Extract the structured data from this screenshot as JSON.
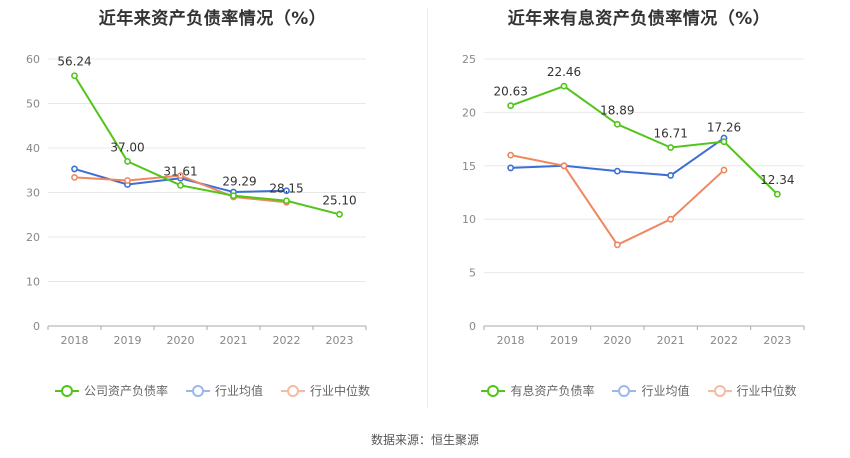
{
  "footer": {
    "source": "数据来源：恒生聚源"
  },
  "chart_data": [
    {
      "type": "line",
      "title": "近年来资产负债率情况（%）",
      "categories": [
        "2018",
        "2019",
        "2020",
        "2021",
        "2022",
        "2023"
      ],
      "ylim": [
        0,
        60
      ],
      "yticks": [
        0,
        10,
        20,
        30,
        40,
        50,
        60
      ],
      "grid": true,
      "legend_position": "bottom",
      "series": [
        {
          "name": "公司资产负债率",
          "color": "#52c41a",
          "values": [
            56.24,
            37.0,
            31.61,
            29.29,
            28.15,
            25.1
          ],
          "labels": [
            "56.24",
            "37.00",
            "31.61",
            "29.29",
            "28.15",
            "25.10"
          ]
        },
        {
          "name": "行业均值",
          "color": "#3c6fd6",
          "values": [
            35.3,
            31.8,
            33.2,
            30.1,
            30.4,
            null
          ]
        },
        {
          "name": "行业中位数",
          "color": "#f0875f",
          "values": [
            33.4,
            32.7,
            33.8,
            29.0,
            27.8,
            null
          ]
        }
      ]
    },
    {
      "type": "line",
      "title": "近年来有息资产负债率情况（%）",
      "categories": [
        "2018",
        "2019",
        "2020",
        "2021",
        "2022",
        "2023"
      ],
      "ylim": [
        0,
        25
      ],
      "yticks": [
        0,
        5,
        10,
        15,
        20,
        25
      ],
      "grid": true,
      "legend_position": "bottom",
      "series": [
        {
          "name": "有息资产负债率",
          "color": "#52c41a",
          "values": [
            20.63,
            22.46,
            18.89,
            16.71,
            17.26,
            12.34
          ],
          "labels": [
            "20.63",
            "22.46",
            "18.89",
            "16.71",
            "17.26",
            "12.34"
          ]
        },
        {
          "name": "行业均值",
          "color": "#3c6fd6",
          "values": [
            14.8,
            15.0,
            14.5,
            14.1,
            17.6,
            null
          ]
        },
        {
          "name": "行业中位数",
          "color": "#f0875f",
          "values": [
            16.0,
            15.0,
            7.6,
            10.0,
            14.6,
            null
          ]
        }
      ]
    }
  ]
}
